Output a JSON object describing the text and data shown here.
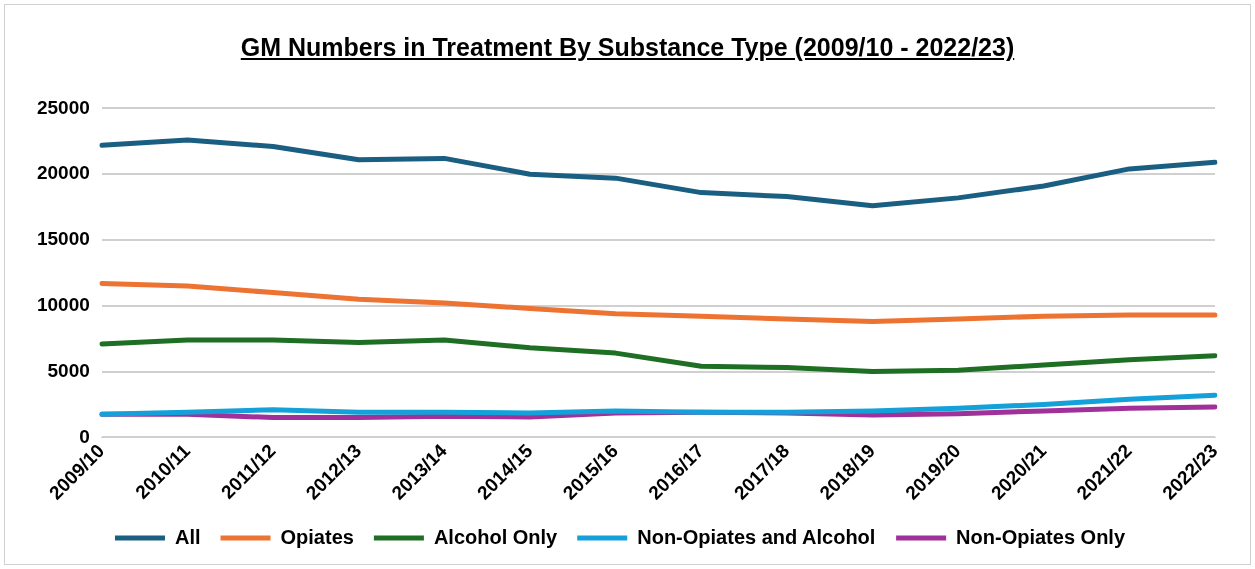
{
  "chart_data": {
    "type": "line",
    "title": "GM Numbers in Treatment By Substance Type (2009/10 - 2022/23)",
    "categories": [
      "2009/10",
      "2010/11",
      "2011/12",
      "2012/13",
      "2013/14",
      "2014/15",
      "2015/16",
      "2016/17",
      "2017/18",
      "2018/19",
      "2019/20",
      "2020/21",
      "2021/22",
      "2022/23"
    ],
    "series": [
      {
        "name": "All",
        "color": "#1a5e82",
        "values": [
          22200,
          22600,
          22100,
          21100,
          21200,
          20000,
          19700,
          18600,
          18300,
          17600,
          18200,
          19100,
          20400,
          20900
        ]
      },
      {
        "name": "Opiates",
        "color": "#ed7333",
        "values": [
          11700,
          11500,
          11000,
          10500,
          10200,
          9800,
          9400,
          9200,
          9000,
          8800,
          9000,
          9200,
          9300,
          9300
        ]
      },
      {
        "name": "Alcohol Only",
        "color": "#1e6e24",
        "values": [
          7100,
          7400,
          7400,
          7200,
          7400,
          6800,
          6400,
          5400,
          5300,
          5000,
          5100,
          5500,
          5900,
          6200
        ]
      },
      {
        "name": "Non-Opiates and Alcohol",
        "color": "#14a0d8",
        "values": [
          1750,
          1900,
          2100,
          1900,
          1900,
          1850,
          2000,
          1900,
          1900,
          2000,
          2200,
          2500,
          2900,
          3200
        ]
      },
      {
        "name": "Non-Opiates Only",
        "color": "#a0309a",
        "values": [
          1750,
          1750,
          1500,
          1500,
          1600,
          1550,
          1850,
          1900,
          1850,
          1700,
          1800,
          2000,
          2200,
          2300
        ]
      }
    ],
    "ylim": [
      0,
      25000
    ],
    "yticks": [
      0,
      5000,
      10000,
      15000,
      20000,
      25000
    ],
    "grid": "y",
    "legend": "bottom",
    "marker": "none",
    "line_style": "solid"
  }
}
